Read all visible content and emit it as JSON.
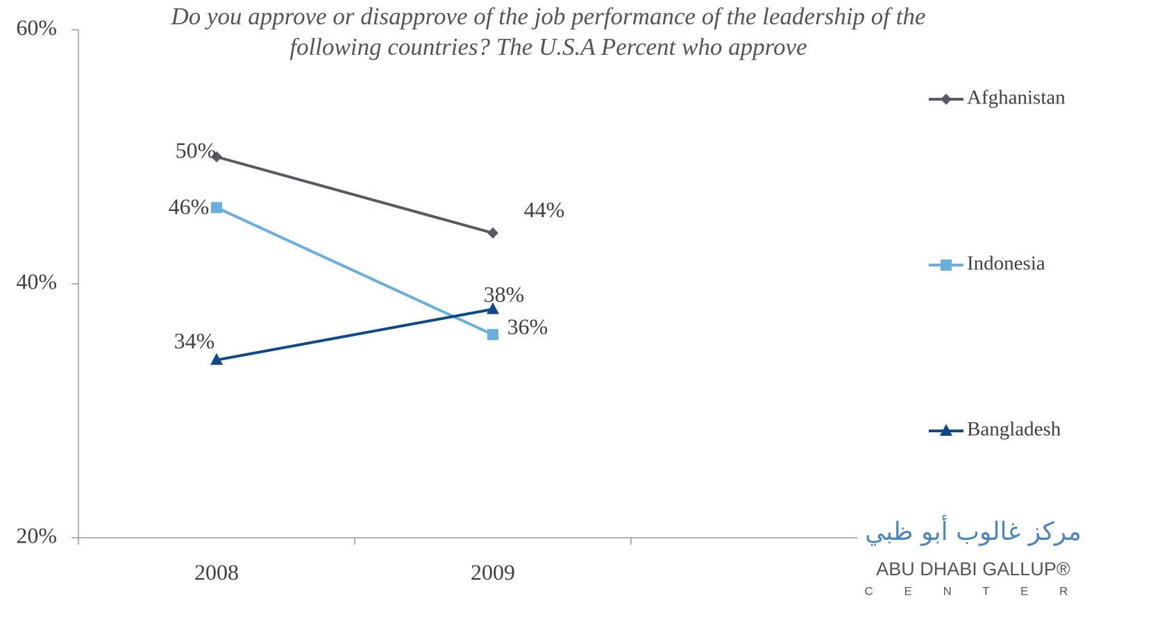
{
  "chart_data": {
    "type": "line",
    "title": "Do you approve or disapprove of the job performance of the leadership of the following countries? The U.S.A Percent who approve",
    "categories": [
      "2008",
      "2009",
      null
    ],
    "ylim": [
      20,
      60
    ],
    "yticks": [
      {
        "value": 20,
        "label": "20%"
      },
      {
        "value": 40,
        "label": "40%"
      },
      {
        "value": 60,
        "label": "60%"
      }
    ],
    "grid": false,
    "legend": "right",
    "series": [
      {
        "name": "Afghanistan",
        "color": "#555a64",
        "marker": "diamond",
        "values": [
          50,
          44,
          null
        ],
        "value_labels": [
          "50%",
          "44%",
          null
        ]
      },
      {
        "name": "Indonesia",
        "color": "#6aaee0",
        "marker": "square",
        "values": [
          46,
          36,
          null
        ],
        "value_labels": [
          "46%",
          "36%",
          null
        ]
      },
      {
        "name": "Bangladesh",
        "color": "#0e4a8a",
        "marker": "triangle",
        "values": [
          34,
          38,
          null
        ],
        "value_labels": [
          "34%",
          "38%",
          null
        ]
      }
    ]
  },
  "logo": {
    "arabic": "مركز غالوب أبو ظبي",
    "name": "ABU DHABI GALLUP®",
    "center": "C E N T E R"
  }
}
